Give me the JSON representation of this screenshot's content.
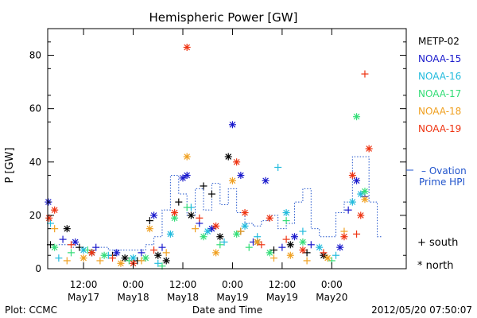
{
  "chart_data": {
    "type": "scatter",
    "title": "Hemispheric Power [GW]",
    "ylabel": "P [GW]",
    "xlabel": "Date and Time",
    "ylim": [
      0,
      90
    ],
    "xlim": [
      "2012-05-17 03:20",
      "2012-05-20 18:00"
    ],
    "yticks": [
      0,
      20,
      40,
      60,
      80
    ],
    "xticks": [
      {
        "t": "2012-05-17 12:00",
        "line1": "12:00",
        "line2": "May17"
      },
      {
        "t": "2012-05-18 00:00",
        "line1": "0:00",
        "line2": "May18"
      },
      {
        "t": "2012-05-18 12:00",
        "line1": "12:00",
        "line2": "May18"
      },
      {
        "t": "2012-05-19 00:00",
        "line1": "0:00",
        "line2": "May19"
      },
      {
        "t": "2012-05-19 12:00",
        "line1": "12:00",
        "line2": "May19"
      },
      {
        "t": "2012-05-20 00:00",
        "line1": "0:00",
        "line2": "May20"
      }
    ],
    "marker_legend": [
      {
        "symbol": "+",
        "label": "south"
      },
      {
        "symbol": "*",
        "label": "north"
      }
    ],
    "ovation": {
      "name": "Ovation Prime HPI",
      "label_line1": "– Ovation",
      "label_line2": "Prime HPI",
      "color": "#2255cc",
      "values": [
        [
          "2012-05-17 06:00",
          9
        ],
        [
          "2012-05-17 09:00",
          8
        ],
        [
          "2012-05-17 12:00",
          7
        ],
        [
          "2012-05-17 15:00",
          8
        ],
        [
          "2012-05-17 18:00",
          7
        ],
        [
          "2012-05-17 21:00",
          7
        ],
        [
          "2012-05-18 00:00",
          7
        ],
        [
          "2012-05-18 03:00",
          9
        ],
        [
          "2012-05-18 05:00",
          12
        ],
        [
          "2012-05-18 07:00",
          22
        ],
        [
          "2012-05-18 09:00",
          35
        ],
        [
          "2012-05-18 11:00",
          28
        ],
        [
          "2012-05-18 13:00",
          20
        ],
        [
          "2012-05-18 15:00",
          30
        ],
        [
          "2012-05-18 17:00",
          22
        ],
        [
          "2012-05-18 19:00",
          32
        ],
        [
          "2012-05-18 21:00",
          24
        ],
        [
          "2012-05-18 23:00",
          30
        ],
        [
          "2012-05-19 01:00",
          21
        ],
        [
          "2012-05-19 03:00",
          17
        ],
        [
          "2012-05-19 05:00",
          16
        ],
        [
          "2012-05-19 07:00",
          18
        ],
        [
          "2012-05-19 09:00",
          20
        ],
        [
          "2012-05-19 11:00",
          15
        ],
        [
          "2012-05-19 13:00",
          17
        ],
        [
          "2012-05-19 15:00",
          25
        ],
        [
          "2012-05-19 17:00",
          30
        ],
        [
          "2012-05-19 19:00",
          15
        ],
        [
          "2012-05-19 21:00",
          12
        ],
        [
          "2012-05-19 23:00",
          12
        ],
        [
          "2012-05-20 01:00",
          21
        ],
        [
          "2012-05-20 03:00",
          25
        ],
        [
          "2012-05-20 05:00",
          42
        ],
        [
          "2012-05-20 07:00",
          42
        ],
        [
          "2012-05-20 09:00",
          25
        ],
        [
          "2012-05-20 11:00",
          12
        ]
      ]
    },
    "series": [
      {
        "name": "METP-02",
        "color": "#000000",
        "points": [
          [
            "2012-05-17 04:00",
            9,
            "+"
          ],
          [
            "2012-05-17 08:00",
            15,
            "*"
          ],
          [
            "2012-05-17 11:00",
            8,
            "+"
          ],
          [
            "2012-05-17 14:00",
            6,
            "*"
          ],
          [
            "2012-05-17 19:00",
            5,
            "+"
          ],
          [
            "2012-05-17 22:00",
            4,
            "*"
          ],
          [
            "2012-05-18 01:00",
            3,
            "+"
          ],
          [
            "2012-05-18 04:00",
            18,
            "+"
          ],
          [
            "2012-05-18 06:00",
            5,
            "*"
          ],
          [
            "2012-05-18 08:00",
            3,
            "*"
          ],
          [
            "2012-05-18 11:00",
            25,
            "+"
          ],
          [
            "2012-05-18 14:00",
            20,
            "*"
          ],
          [
            "2012-05-18 17:00",
            31,
            "+"
          ],
          [
            "2012-05-18 19:00",
            28,
            "+"
          ],
          [
            "2012-05-18 21:00",
            12,
            "*"
          ],
          [
            "2012-05-18 23:00",
            42,
            "*"
          ],
          [
            "2012-05-19 02:00",
            14,
            "+"
          ],
          [
            "2012-05-19 06:00",
            10,
            "*"
          ],
          [
            "2012-05-19 10:00",
            7,
            "+"
          ],
          [
            "2012-05-19 14:00",
            9,
            "*"
          ],
          [
            "2012-05-19 18:00",
            6,
            "+"
          ],
          [
            "2012-05-19 22:00",
            5,
            "*"
          ]
        ]
      },
      {
        "name": "NOAA-15",
        "color": "#1a1acc",
        "points": [
          [
            "2012-05-17 03:30",
            25,
            "*"
          ],
          [
            "2012-05-17 07:00",
            11,
            "+"
          ],
          [
            "2012-05-17 10:00",
            10,
            "*"
          ],
          [
            "2012-05-17 15:00",
            8,
            "+"
          ],
          [
            "2012-05-17 20:00",
            6,
            "*"
          ],
          [
            "2012-05-18 02:00",
            6,
            "+"
          ],
          [
            "2012-05-18 05:00",
            20,
            "*"
          ],
          [
            "2012-05-18 07:00",
            8,
            "+"
          ],
          [
            "2012-05-18 12:00",
            34,
            "*"
          ],
          [
            "2012-05-18 13:00",
            35,
            "*"
          ],
          [
            "2012-05-18 16:00",
            17,
            "+"
          ],
          [
            "2012-05-18 19:00",
            15,
            "*"
          ],
          [
            "2012-05-19 00:00",
            54,
            "*"
          ],
          [
            "2012-05-19 02:00",
            35,
            "*"
          ],
          [
            "2012-05-19 05:00",
            10,
            "+"
          ],
          [
            "2012-05-19 08:00",
            33,
            "*"
          ],
          [
            "2012-05-19 12:00",
            8,
            "+"
          ],
          [
            "2012-05-19 15:00",
            12,
            "*"
          ],
          [
            "2012-05-19 19:00",
            9,
            "+"
          ],
          [
            "2012-05-20 02:00",
            8,
            "*"
          ],
          [
            "2012-05-20 04:00",
            22,
            "+"
          ],
          [
            "2012-05-20 06:00",
            33,
            "*"
          ],
          [
            "2012-05-20 08:00",
            27,
            "+"
          ]
        ]
      },
      {
        "name": "NOAA-16",
        "color": "#22bbdd",
        "points": [
          [
            "2012-05-17 04:00",
            17,
            "+"
          ],
          [
            "2012-05-17 06:00",
            4,
            "+"
          ],
          [
            "2012-05-17 12:00",
            7,
            "*"
          ],
          [
            "2012-05-17 18:00",
            5,
            "+"
          ],
          [
            "2012-05-18 00:00",
            4,
            "*"
          ],
          [
            "2012-05-18 06:00",
            2,
            "+"
          ],
          [
            "2012-05-18 09:00",
            13,
            "*"
          ],
          [
            "2012-05-18 14:00",
            23,
            "+"
          ],
          [
            "2012-05-18 18:00",
            14,
            "*"
          ],
          [
            "2012-05-18 22:00",
            10,
            "+"
          ],
          [
            "2012-05-19 03:00",
            16,
            "*"
          ],
          [
            "2012-05-19 06:00",
            12,
            "+"
          ],
          [
            "2012-05-19 11:00",
            38,
            "+"
          ],
          [
            "2012-05-19 13:00",
            21,
            "*"
          ],
          [
            "2012-05-19 17:00",
            14,
            "+"
          ],
          [
            "2012-05-19 21:00",
            8,
            "*"
          ],
          [
            "2012-05-20 01:00",
            5,
            "+"
          ],
          [
            "2012-05-20 05:00",
            25,
            "*"
          ],
          [
            "2012-05-20 07:00",
            28,
            "*"
          ]
        ]
      },
      {
        "name": "NOAA-17",
        "color": "#33dd77",
        "points": [
          [
            "2012-05-17 05:00",
            8,
            "*"
          ],
          [
            "2012-05-17 09:00",
            6,
            "+"
          ],
          [
            "2012-05-17 13:00",
            7,
            "+"
          ],
          [
            "2012-05-17 17:00",
            5,
            "*"
          ],
          [
            "2012-05-17 23:00",
            3,
            "+"
          ],
          [
            "2012-05-18 03:00",
            4,
            "*"
          ],
          [
            "2012-05-18 07:00",
            1,
            "+"
          ],
          [
            "2012-05-18 10:00",
            19,
            "*"
          ],
          [
            "2012-05-18 13:00",
            23,
            "+"
          ],
          [
            "2012-05-18 17:00",
            12,
            "*"
          ],
          [
            "2012-05-18 21:00",
            9,
            "+"
          ],
          [
            "2012-05-19 01:00",
            13,
            "*"
          ],
          [
            "2012-05-19 04:00",
            8,
            "+"
          ],
          [
            "2012-05-19 09:00",
            6,
            "*"
          ],
          [
            "2012-05-19 13:00",
            18,
            "+"
          ],
          [
            "2012-05-19 17:00",
            10,
            "*"
          ],
          [
            "2012-05-20 00:00",
            3,
            "+"
          ],
          [
            "2012-05-20 06:00",
            57,
            "*"
          ],
          [
            "2012-05-20 08:00",
            29,
            "*"
          ]
        ]
      },
      {
        "name": "NOAA-18",
        "color": "#f0a020",
        "points": [
          [
            "2012-05-17 05:00",
            15,
            "+"
          ],
          [
            "2012-05-17 08:00",
            3,
            "+"
          ],
          [
            "2012-05-17 12:00",
            4,
            "*"
          ],
          [
            "2012-05-17 16:00",
            3,
            "+"
          ],
          [
            "2012-05-17 21:00",
            2,
            "*"
          ],
          [
            "2012-05-18 02:00",
            3,
            "+"
          ],
          [
            "2012-05-18 04:00",
            15,
            "*"
          ],
          [
            "2012-05-18 08:00",
            6,
            "+"
          ],
          [
            "2012-05-18 13:00",
            42,
            "*"
          ],
          [
            "2012-05-18 15:00",
            15,
            "+"
          ],
          [
            "2012-05-18 20:00",
            6,
            "*"
          ],
          [
            "2012-05-19 00:00",
            33,
            "*"
          ],
          [
            "2012-05-19 02:00",
            14,
            "+"
          ],
          [
            "2012-05-19 06:00",
            10,
            "*"
          ],
          [
            "2012-05-19 10:00",
            4,
            "+"
          ],
          [
            "2012-05-19 14:00",
            5,
            "*"
          ],
          [
            "2012-05-19 18:00",
            3,
            "+"
          ],
          [
            "2012-05-19 23:00",
            4,
            "*"
          ],
          [
            "2012-05-20 03:00",
            14,
            "+"
          ],
          [
            "2012-05-20 08:00",
            26,
            "*"
          ]
        ]
      },
      {
        "name": "NOAA-19",
        "color": "#ee3311",
        "points": [
          [
            "2012-05-17 03:40",
            19,
            "*"
          ],
          [
            "2012-05-17 05:00",
            22,
            "*"
          ],
          [
            "2012-05-17 09:00",
            9,
            "+"
          ],
          [
            "2012-05-17 14:00",
            6,
            "*"
          ],
          [
            "2012-05-17 19:00",
            4,
            "+"
          ],
          [
            "2012-05-18 00:00",
            2,
            "*"
          ],
          [
            "2012-05-18 05:00",
            7,
            "+"
          ],
          [
            "2012-05-18 10:00",
            21,
            "*"
          ],
          [
            "2012-05-18 13:00",
            83,
            "*"
          ],
          [
            "2012-05-18 16:00",
            19,
            "+"
          ],
          [
            "2012-05-18 20:00",
            16,
            "*"
          ],
          [
            "2012-05-19 01:00",
            40,
            "*"
          ],
          [
            "2012-05-19 03:00",
            21,
            "*"
          ],
          [
            "2012-05-19 07:00",
            9,
            "+"
          ],
          [
            "2012-05-19 09:00",
            19,
            "*"
          ],
          [
            "2012-05-19 13:00",
            11,
            "+"
          ],
          [
            "2012-05-19 17:00",
            7,
            "*"
          ],
          [
            "2012-05-19 22:00",
            6,
            "+"
          ],
          [
            "2012-05-20 03:00",
            12,
            "*"
          ],
          [
            "2012-05-20 05:00",
            35,
            "*"
          ],
          [
            "2012-05-20 06:00",
            13,
            "+"
          ],
          [
            "2012-05-20 07:00",
            20,
            "*"
          ],
          [
            "2012-05-20 08:00",
            73,
            "+"
          ],
          [
            "2012-05-20 09:00",
            45,
            "*"
          ]
        ]
      }
    ]
  },
  "footer": {
    "left": "Plot: CCMC",
    "right": "2012/05/20 07:50:07"
  }
}
